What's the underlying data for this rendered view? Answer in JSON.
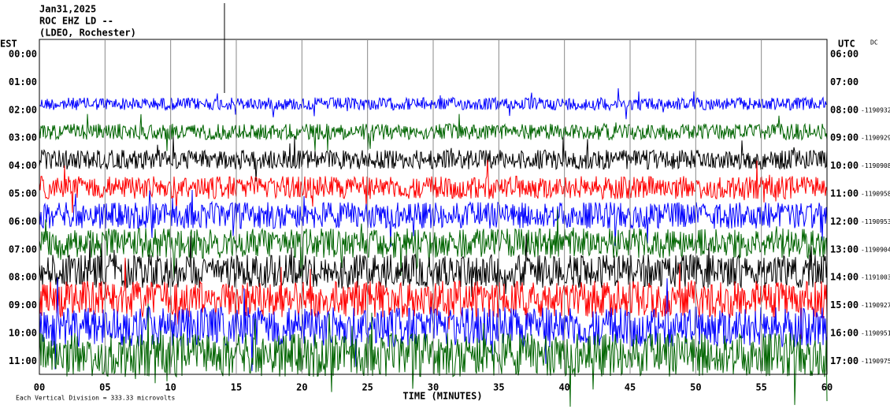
{
  "header": {
    "date": "Jan31,2025",
    "station": "ROC EHZ LD --",
    "network": "(LDEO, Rochester)"
  },
  "left_axis": {
    "label": "EST",
    "hours": [
      "00:00",
      "01:00",
      "02:00",
      "03:00",
      "04:00",
      "05:00",
      "06:00",
      "07:00",
      "08:00",
      "09:00",
      "10:00",
      "11:00"
    ]
  },
  "right_axis": {
    "label": "UTC",
    "dc": "DC",
    "hours": [
      "06:00",
      "07:00",
      "08:00",
      "09:00",
      "10:00",
      "11:00",
      "12:00",
      "13:00",
      "14:00",
      "15:00",
      "16:00",
      "17:00"
    ],
    "row_codes": [
      null,
      null,
      "-1190932",
      "-1190929",
      "-1190908",
      "-1190958",
      "-1190953",
      "-1190904",
      "-1191003",
      "-1190927",
      "-1190951",
      "-1190975"
    ]
  },
  "x_axis": {
    "labels": [
      "00",
      "05",
      "10",
      "15",
      "20",
      "25",
      "30",
      "35",
      "40",
      "45",
      "50",
      "55",
      "60"
    ],
    "title": "TIME (MINUTES)"
  },
  "footer": {
    "scale": "Each Vertical Division =  333.33 microvolts"
  }
}
